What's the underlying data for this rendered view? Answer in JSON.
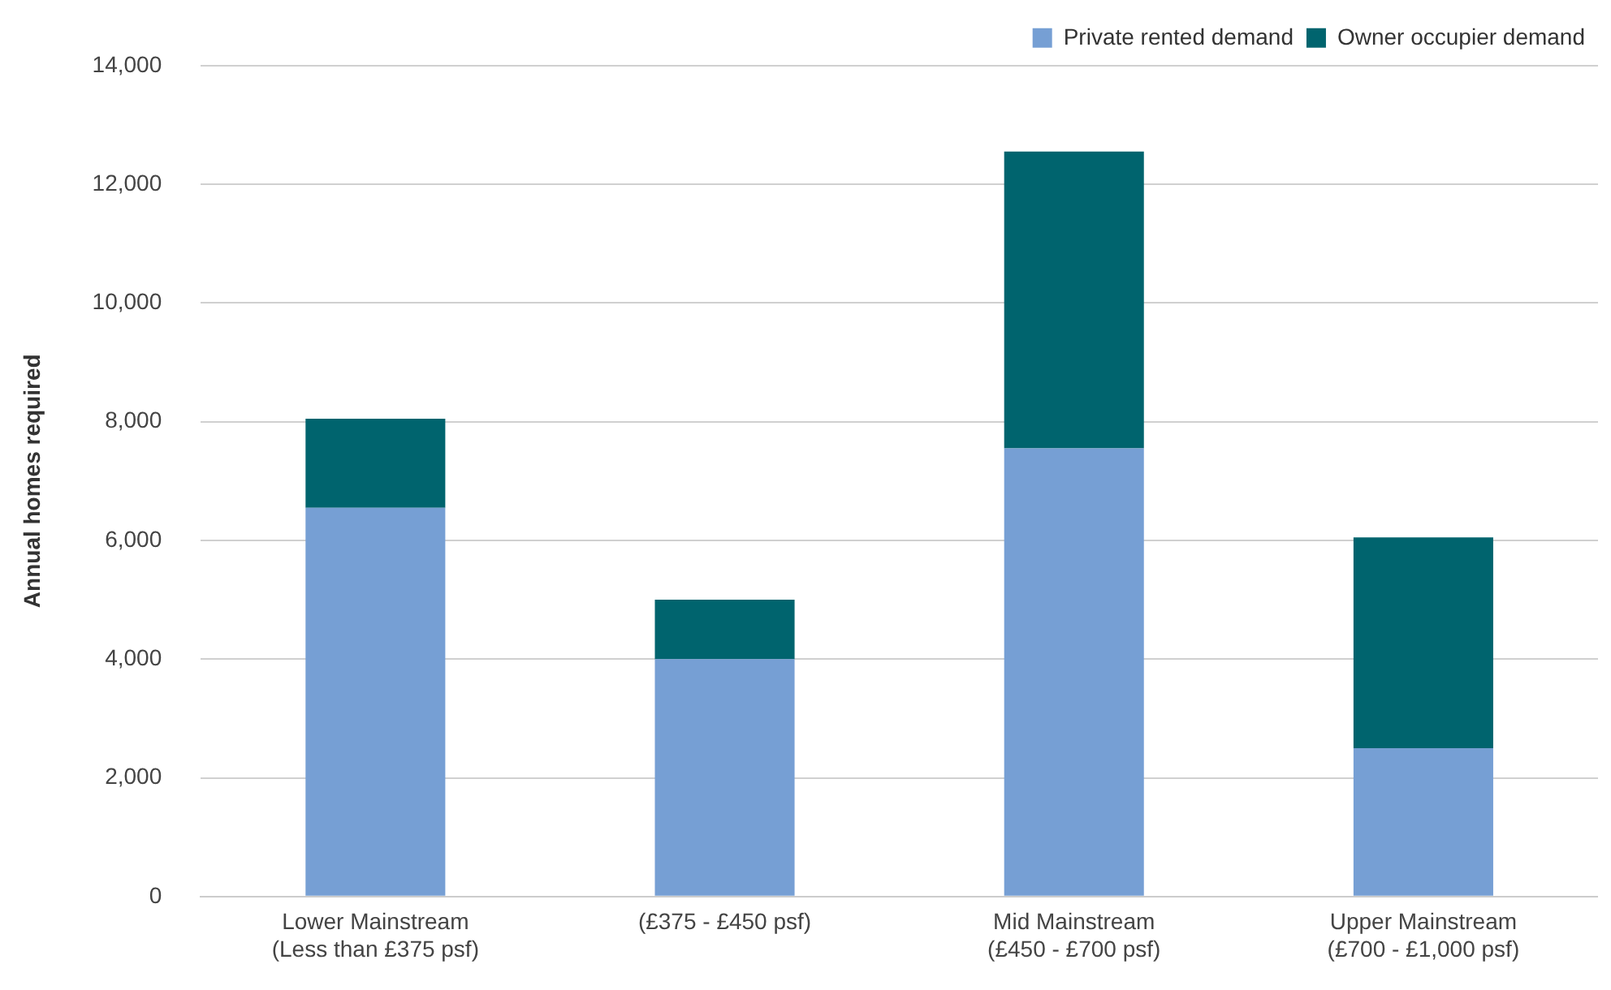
{
  "chart_data": {
    "type": "bar",
    "stacked": true,
    "ylabel": "Annual homes required",
    "categories": [
      "Lower Mainstream\n(Less than £375 psf)",
      "(£375 - £450 psf)",
      "Mid Mainstream\n(£450 - £700 psf)",
      "Upper Mainstream\n(£700 - £1,000 psf)"
    ],
    "series": [
      {
        "name": "Private rented demand",
        "color": "#769fd4",
        "values": [
          6550,
          4000,
          7550,
          2500
        ]
      },
      {
        "name": "Owner occupier demand",
        "color": "#00646e",
        "values": [
          1500,
          1000,
          5000,
          3550
        ]
      }
    ],
    "ylim": [
      0,
      14000
    ],
    "yticks": [
      0,
      {
        "value": 2000,
        "label": "2,000"
      },
      {
        "value": 4000,
        "label": "4,000"
      },
      {
        "value": 6000,
        "label": "6,000"
      },
      {
        "value": 8000,
        "label": "8,000"
      },
      {
        "value": 10000,
        "label": "10,000"
      },
      {
        "value": 12000,
        "label": "12,000"
      },
      {
        "value": 14000,
        "label": "14,000"
      }
    ],
    "grid": "y",
    "legend": "top right"
  }
}
